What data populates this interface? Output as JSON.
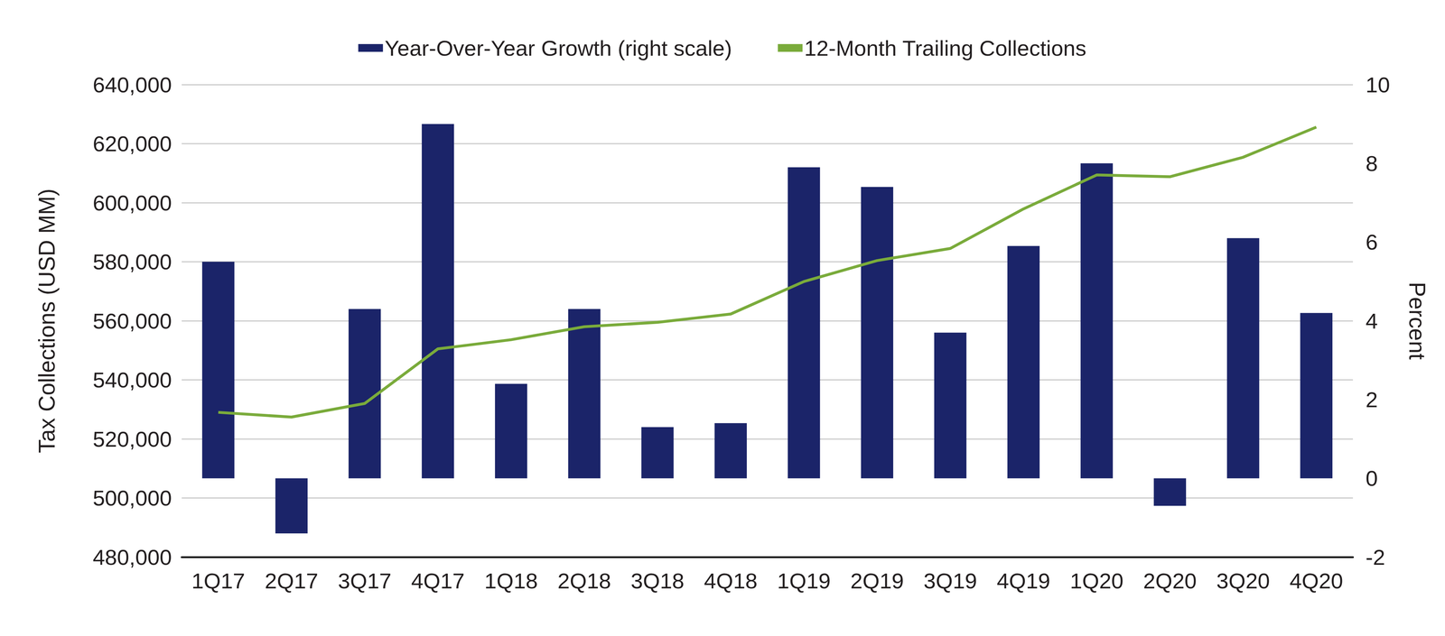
{
  "chart_data": {
    "type": "bar",
    "categories": [
      "1Q17",
      "2Q17",
      "3Q17",
      "4Q17",
      "1Q18",
      "2Q18",
      "3Q18",
      "4Q18",
      "1Q19",
      "2Q19",
      "3Q19",
      "4Q19",
      "1Q20",
      "2Q20",
      "3Q20",
      "4Q20"
    ],
    "series": [
      {
        "name": "Year-Over-Year Growth (right scale)",
        "type": "bar",
        "axis": "y2",
        "color": "#1b2469",
        "values": [
          5.5,
          -1.4,
          4.3,
          9.0,
          2.4,
          4.3,
          1.3,
          1.4,
          7.9,
          7.4,
          3.7,
          5.9,
          8.0,
          -0.7,
          6.1,
          4.2
        ]
      },
      {
        "name": "12-Month Trailing Collections",
        "type": "line",
        "color": "#7aab3b",
        "values": [
          529000,
          527400,
          532000,
          550500,
          553600,
          558000,
          559500,
          562300,
          573300,
          580400,
          584500,
          597900,
          609400,
          608800,
          615400,
          625600
        ]
      }
    ],
    "y_label": "Tax Collections (USD MM)",
    "y2_label": "Percent",
    "ylim": [
      480000,
      640000
    ],
    "yticks": [
      {
        "value": 480000,
        "label": "480,000"
      },
      {
        "value": 500000,
        "label": "500,000"
      },
      {
        "value": 520000,
        "label": "520,000"
      },
      {
        "value": 540000,
        "label": "540,000"
      },
      {
        "value": 560000,
        "label": "560,000"
      },
      {
        "value": 580000,
        "label": "580,000"
      },
      {
        "value": 600000,
        "label": "600,000"
      },
      {
        "value": 620000,
        "label": "620,000"
      },
      {
        "value": 640000,
        "label": "640,000"
      }
    ],
    "y2lim": [
      -2,
      10
    ],
    "y2ticks": [
      -2,
      0,
      2,
      4,
      6,
      8,
      10
    ],
    "grid": true,
    "legend": "top"
  }
}
